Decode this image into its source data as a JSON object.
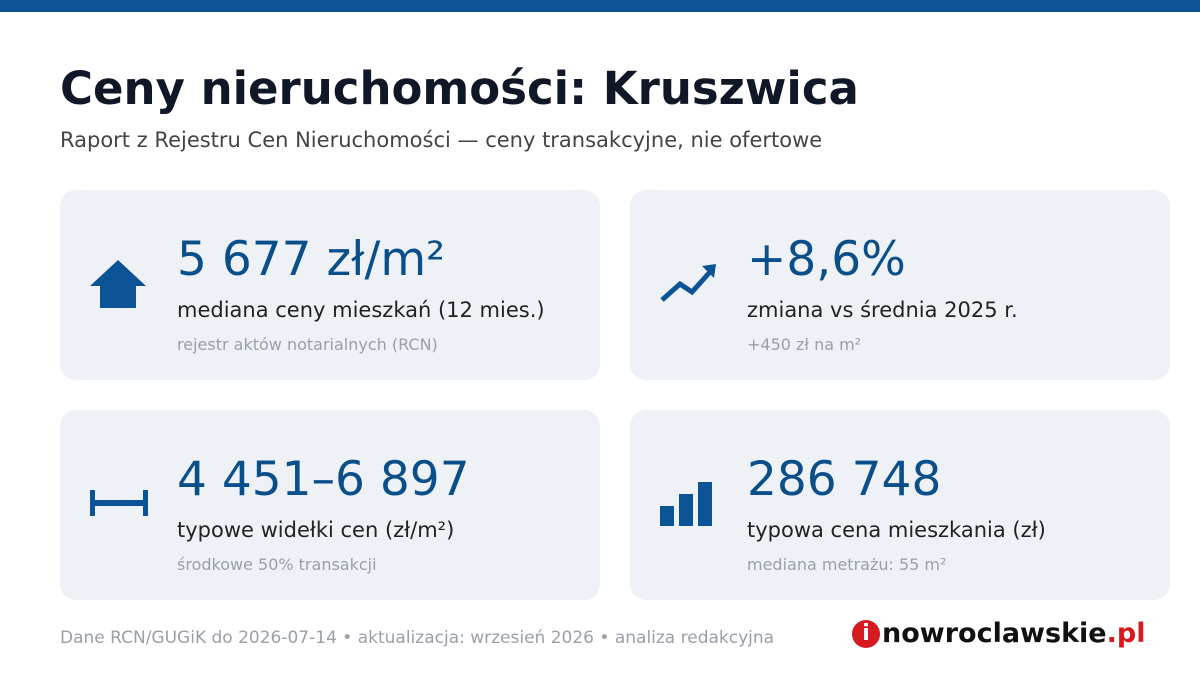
{
  "header": {
    "title": "Ceny nieruchomości: Kruszwica",
    "subtitle": "Raport z Rejestru Cen Nieruchomości — ceny transakcyjne, nie ofertowe"
  },
  "cards": [
    {
      "value": "5 677 zł/m²",
      "label": "mediana ceny mieszkań (12 mies.)",
      "note": "rejestr aktów notarialnych (RCN)"
    },
    {
      "value": "+8,6%",
      "label": "zmiana vs średnia 2025 r.",
      "note": "+450 zł na m²"
    },
    {
      "value": "4 451–6 897",
      "label": "typowe widełki cen (zł/m²)",
      "note": "środkowe 50% transakcji"
    },
    {
      "value": "286 748",
      "label": "typowa cena mieszkania (zł)",
      "note": "mediana metrażu: 55 m²"
    }
  ],
  "footer": {
    "text": "Dane RCN/GUGiK do 2026-07-14 • aktualizacja: wrzesień 2026 • analiza redakcyjna",
    "logo": {
      "mark": "i",
      "name": "nowroclawskie",
      "domain": ".pl"
    }
  }
}
